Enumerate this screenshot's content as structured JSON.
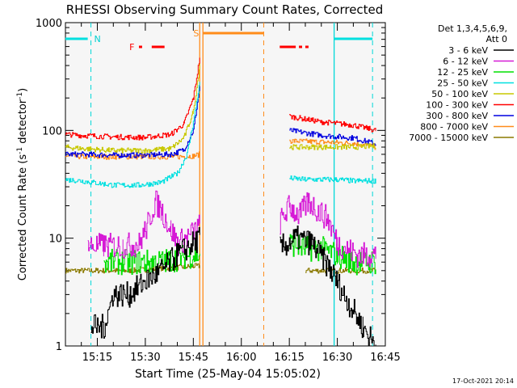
{
  "chart_data": {
    "type": "line",
    "title": "RHESSI Observing Summary Count Rates, Corrected",
    "xlabel": "Start Time (25-May-04 15:05:02)",
    "ylabel": "Corrected Count Rate (s^-1 detector^-1)",
    "ylabel_main": "Corrected Count Rate (s",
    "ylabel_sup1": "-1",
    "ylabel_mid": " detector",
    "ylabel_sup2": "-1",
    "ylabel_end": ")",
    "y_scale": "log",
    "ylim": [
      1,
      1000
    ],
    "xlim": [
      "15:05:02",
      "16:45:00"
    ],
    "x_tick_labels": [
      "15:15",
      "15:30",
      "15:45",
      "16:00",
      "16:15",
      "16:30",
      "16:45"
    ],
    "y_tick_labels": [
      "1",
      "10",
      "100",
      "1000"
    ],
    "legend_header": [
      "Det 1,3,4,5,6,9,",
      "Att 0"
    ],
    "legend_position": "right",
    "timestamp": "17-Oct-2021 20:14",
    "data_gap": [
      "15:48",
      "16:09"
    ],
    "series": [
      {
        "name": "3 - 6 keV",
        "color": "#000000",
        "x": [
          "15:05",
          "15:10",
          "15:13",
          "15:17",
          "15:20",
          "15:25",
          "15:30",
          "15:35",
          "15:40",
          "15:45",
          "15:47",
          "16:09",
          "16:12",
          "16:17",
          "16:22",
          "16:28",
          "16:32",
          "16:38",
          "16:42"
        ],
        "values": [
          null,
          null,
          1.5,
          1.5,
          3,
          3,
          4,
          5,
          7,
          9,
          10,
          null,
          8,
          10,
          9,
          5,
          3,
          1.5,
          1
        ]
      },
      {
        "name": "6 - 12 keV",
        "color": "#d61ad6",
        "x": [
          "15:12",
          "15:17",
          "15:23",
          "15:28",
          "15:31",
          "15:33",
          "15:35",
          "15:38",
          "15:40",
          "15:43",
          "15:47",
          "16:09",
          "16:12",
          "16:15",
          "16:18",
          "16:21",
          "16:24",
          "16:27",
          "16:30",
          "16:33",
          "16:36",
          "16:40",
          "16:42"
        ],
        "values": [
          8.5,
          8.5,
          8.5,
          8.8,
          14,
          22,
          18,
          12,
          9,
          10,
          13,
          null,
          14,
          20,
          16,
          22,
          18,
          15,
          9,
          8,
          7,
          7,
          7
        ]
      },
      {
        "name": "12 - 25 keV",
        "color": "#00e000",
        "x": [
          "15:05",
          "15:17",
          "15:25",
          "15:30",
          "15:35",
          "15:40",
          "15:45",
          "15:47",
          "16:09",
          "16:15",
          "16:20",
          "16:25",
          "16:30",
          "16:35",
          "16:42"
        ],
        "values": [
          null,
          6,
          6,
          6,
          6,
          6.5,
          7,
          7,
          null,
          9,
          8,
          8,
          7,
          6,
          6
        ]
      },
      {
        "name": "25 - 50 keV",
        "color": "#00e0e0",
        "x": [
          "15:05",
          "15:10",
          "15:20",
          "15:28",
          "15:35",
          "15:40",
          "15:43",
          "15:45",
          "15:47",
          "16:09",
          "16:15",
          "16:20",
          "16:25",
          "16:30",
          "16:35",
          "16:42"
        ],
        "values": [
          35,
          34,
          31,
          31,
          33,
          40,
          60,
          120,
          280,
          null,
          36,
          35,
          35,
          35,
          34,
          34
        ]
      },
      {
        "name": "50 - 100 keV",
        "color": "#c8c800",
        "x": [
          "15:05",
          "15:10",
          "15:20",
          "15:30",
          "15:38",
          "15:42",
          "15:45",
          "15:47",
          "16:09",
          "16:15",
          "16:25",
          "16:35",
          "16:42"
        ],
        "values": [
          70,
          68,
          65,
          65,
          68,
          85,
          150,
          420,
          null,
          70,
          70,
          70,
          72
        ]
      },
      {
        "name": "100 - 300 keV",
        "color": "#ff0000",
        "x": [
          "15:05",
          "15:10",
          "15:20",
          "15:30",
          "15:38",
          "15:42",
          "15:45",
          "15:47",
          "16:09",
          "16:15",
          "16:25",
          "16:35",
          "16:42"
        ],
        "values": [
          92,
          90,
          87,
          86,
          92,
          115,
          200,
          480,
          null,
          135,
          120,
          112,
          100
        ]
      },
      {
        "name": "300 - 800 keV",
        "color": "#0000e0",
        "x": [
          "15:05",
          "15:10",
          "15:20",
          "15:30",
          "15:38",
          "15:42",
          "15:45",
          "15:47",
          "16:09",
          "16:15",
          "16:25",
          "16:35",
          "16:42"
        ],
        "values": [
          60,
          60,
          59,
          59,
          60,
          66,
          100,
          260,
          null,
          100,
          90,
          85,
          75
        ]
      },
      {
        "name": "800 - 7000 keV",
        "color": "#ff8c1a",
        "x": [
          "15:05",
          "15:10",
          "15:20",
          "15:30",
          "15:40",
          "15:45",
          "15:47",
          "16:09",
          "16:15",
          "16:25",
          "16:35",
          "16:42"
        ],
        "values": [
          58,
          57,
          57,
          57,
          57,
          58,
          60,
          null,
          80,
          78,
          76,
          70
        ]
      },
      {
        "name": "7000 - 15000 keV",
        "color": "#8b7a00",
        "x": [
          "15:05",
          "15:15",
          "15:25",
          "15:35",
          "15:45",
          "15:47",
          "16:09",
          "16:20",
          "16:30",
          "16:35",
          "16:42"
        ],
        "values": [
          5,
          5,
          5,
          5.2,
          5.5,
          5.5,
          null,
          5,
          5,
          5,
          5
        ]
      }
    ],
    "attenuator_bars": {
      "cyan_label": "N",
      "orange_label": "S",
      "flare_label": "F"
    }
  }
}
